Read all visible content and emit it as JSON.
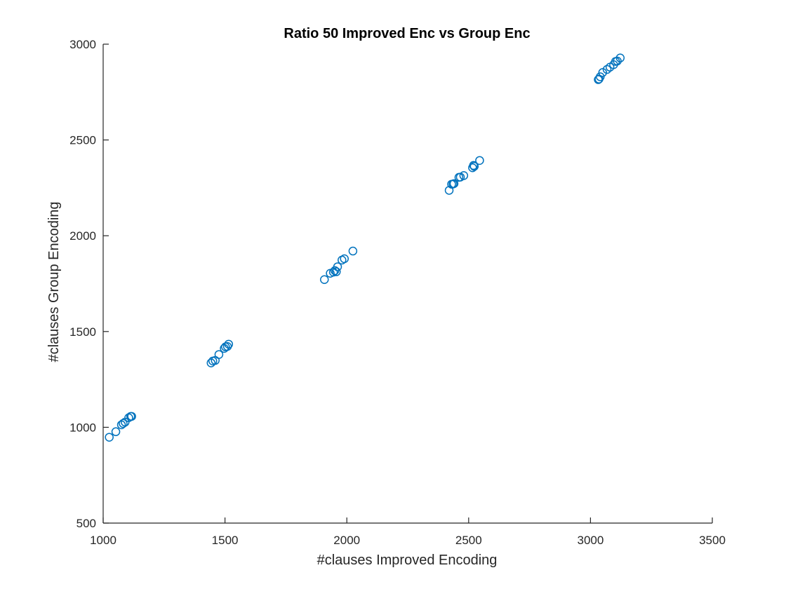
{
  "chart_data": {
    "type": "scatter",
    "title": "Ratio 50 Improved Enc vs Group Enc",
    "xlabel": "#clauses Improved Encoding",
    "ylabel": "#clauses Group Encoding",
    "xlim": [
      1000,
      3500
    ],
    "ylim": [
      500,
      3000
    ],
    "xticks": [
      1000,
      1500,
      2000,
      2500,
      3000,
      3500
    ],
    "yticks": [
      500,
      1000,
      1500,
      2000,
      2500,
      3000
    ],
    "grid": false,
    "marker": "circle-open",
    "color": "#0072BD",
    "series": [
      {
        "points": [
          [
            1025,
            948
          ],
          [
            1052,
            977
          ],
          [
            1075,
            1013
          ],
          [
            1082,
            1020
          ],
          [
            1090,
            1027
          ],
          [
            1105,
            1050
          ],
          [
            1113,
            1057
          ],
          [
            1117,
            1057
          ],
          [
            1443,
            1336
          ],
          [
            1450,
            1346
          ],
          [
            1460,
            1349
          ],
          [
            1475,
            1380
          ],
          [
            1497,
            1412
          ],
          [
            1502,
            1420
          ],
          [
            1510,
            1422
          ],
          [
            1515,
            1434
          ],
          [
            1908,
            1771
          ],
          [
            1932,
            1804
          ],
          [
            1945,
            1810
          ],
          [
            1951,
            1818
          ],
          [
            1957,
            1812
          ],
          [
            1962,
            1838
          ],
          [
            1980,
            1873
          ],
          [
            1990,
            1880
          ],
          [
            2025,
            1920
          ],
          [
            2420,
            2237
          ],
          [
            2430,
            2269
          ],
          [
            2436,
            2270
          ],
          [
            2440,
            2272
          ],
          [
            2460,
            2305
          ],
          [
            2466,
            2306
          ],
          [
            2480,
            2314
          ],
          [
            2516,
            2355
          ],
          [
            2520,
            2367
          ],
          [
            2523,
            2362
          ],
          [
            2545,
            2393
          ],
          [
            3032,
            2815
          ],
          [
            3035,
            2818
          ],
          [
            3040,
            2830
          ],
          [
            3050,
            2852
          ],
          [
            3068,
            2868
          ],
          [
            3080,
            2880
          ],
          [
            3095,
            2893
          ],
          [
            3103,
            2910
          ],
          [
            3110,
            2912
          ],
          [
            3122,
            2928
          ]
        ]
      }
    ]
  }
}
